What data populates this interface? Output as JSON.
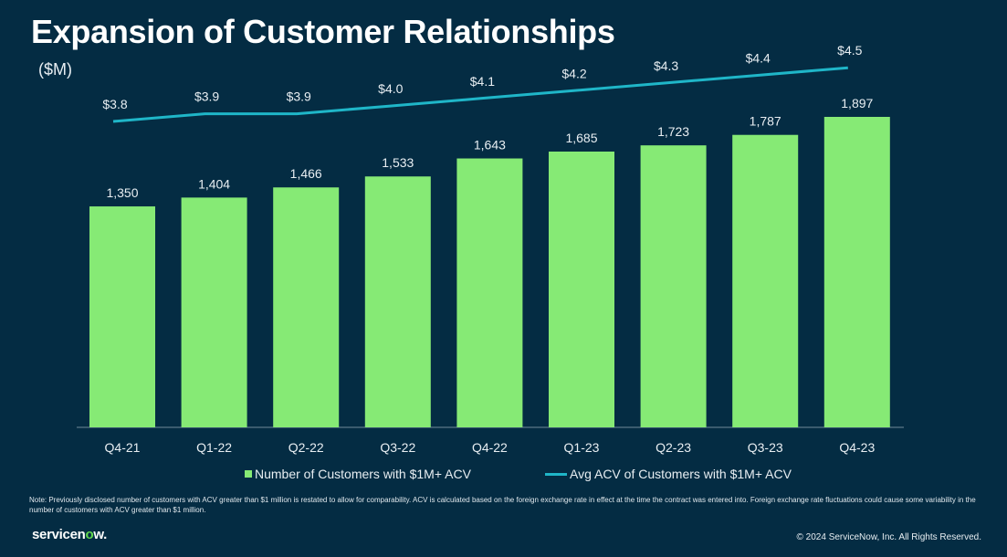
{
  "title": "Expansion of Customer Relationships",
  "unit_label": "($M)",
  "chart_data": {
    "type": "bar+line",
    "categories": [
      "Q4-21",
      "Q1-22",
      "Q2-22",
      "Q3-22",
      "Q4-22",
      "Q1-23",
      "Q2-23",
      "Q3-23",
      "Q4-23"
    ],
    "series": [
      {
        "name": "Number of Customers with $1M+ ACV",
        "type": "bar",
        "color": "#86ea75",
        "values": [
          1350,
          1404,
          1466,
          1533,
          1643,
          1685,
          1723,
          1787,
          1897
        ],
        "labels": [
          "1,350",
          "1,404",
          "1,466",
          "1,533",
          "1,643",
          "1,685",
          "1,723",
          "1,787",
          "1,897"
        ]
      },
      {
        "name": "Avg ACV of Customers with $1M+ ACV",
        "type": "line",
        "color": "#1fb6c8",
        "values": [
          3.8,
          3.9,
          3.9,
          4.0,
          4.1,
          4.2,
          4.3,
          4.4,
          4.5
        ],
        "labels": [
          "$3.8",
          "$3.9",
          "$3.9",
          "$4.0",
          "$4.1",
          "$4.2",
          "$4.3",
          "$4.4",
          "$4.5"
        ]
      }
    ],
    "legend_position": "bottom",
    "grid": false
  },
  "legend": {
    "bar": "Number of Customers with $1M+ ACV",
    "line": "Avg ACV of Customers with $1M+ ACV"
  },
  "note": "Note: Previously disclosed number of customers with ACV greater than $1 million is restated to allow for comparability. ACV is calculated based on the foreign exchange rate in effect at the time the contract was entered into. Foreign exchange rate fluctuations could cause some variability in the number of customers with ACV greater than $1 million.",
  "logo": {
    "text_main": "servicen",
    "text_o": "o",
    "text_end": "w."
  },
  "copyright": "© 2024 ServiceNow, Inc. All Rights Reserved."
}
